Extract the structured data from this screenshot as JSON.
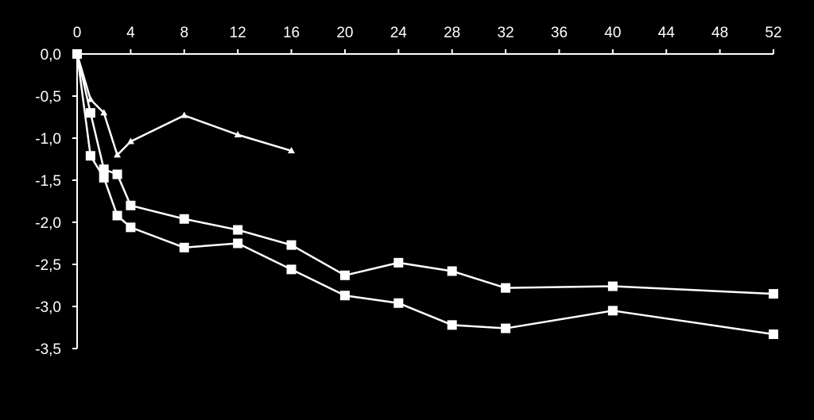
{
  "chart_data": {
    "type": "line",
    "title": "",
    "xlabel": "",
    "ylabel": "",
    "xlim": [
      0,
      52
    ],
    "ylim": [
      -3.5,
      0.0
    ],
    "x_ticks": [
      {
        "value": 0,
        "label": "0"
      },
      {
        "value": 4,
        "label": "4"
      },
      {
        "value": 8,
        "label": "8"
      },
      {
        "value": 12,
        "label": "12"
      },
      {
        "value": 16,
        "label": "16"
      },
      {
        "value": 20,
        "label": "20"
      },
      {
        "value": 24,
        "label": "24"
      },
      {
        "value": 28,
        "label": "28"
      },
      {
        "value": 32,
        "label": "32"
      },
      {
        "value": 36,
        "label": "36"
      },
      {
        "value": 40,
        "label": "40"
      },
      {
        "value": 44,
        "label": "44"
      },
      {
        "value": 48,
        "label": "48"
      },
      {
        "value": 52,
        "label": "52"
      }
    ],
    "y_ticks": [
      {
        "value": 0.0,
        "label": "0,0"
      },
      {
        "value": -0.5,
        "label": "-0,5"
      },
      {
        "value": -1.0,
        "label": "-1,0"
      },
      {
        "value": -1.5,
        "label": "-1,5"
      },
      {
        "value": -2.0,
        "label": "-2,0"
      },
      {
        "value": -2.5,
        "label": "-2,5"
      },
      {
        "value": -3.0,
        "label": "-3,0"
      },
      {
        "value": -3.5,
        "label": "-3,5"
      }
    ],
    "x_axis_position": "top",
    "grid": false,
    "legend": "none",
    "colors": {
      "background": "#000000",
      "foreground": "#ffffff"
    },
    "series": [
      {
        "marker": "square",
        "points": [
          [
            0,
            0.0
          ],
          [
            1,
            -0.7
          ],
          [
            2,
            -1.37
          ],
          [
            3,
            -1.43
          ],
          [
            4,
            -1.8
          ],
          [
            8,
            -1.96
          ],
          [
            12,
            -2.09
          ],
          [
            16,
            -2.27
          ],
          [
            20,
            -2.63
          ],
          [
            24,
            -2.48
          ],
          [
            28,
            -2.58
          ],
          [
            32,
            -2.78
          ],
          [
            40,
            -2.76
          ],
          [
            52,
            -2.85
          ]
        ]
      },
      {
        "marker": "square",
        "points": [
          [
            0,
            0.0
          ],
          [
            1,
            -1.21
          ],
          [
            2,
            -1.47
          ],
          [
            3,
            -1.92
          ],
          [
            4,
            -2.06
          ],
          [
            8,
            -2.3
          ],
          [
            12,
            -2.25
          ],
          [
            16,
            -2.56
          ],
          [
            20,
            -2.87
          ],
          [
            24,
            -2.96
          ],
          [
            28,
            -3.22
          ],
          [
            32,
            -3.26
          ],
          [
            40,
            -3.05
          ],
          [
            52,
            -3.33
          ]
        ]
      },
      {
        "marker": "triangle",
        "points": [
          [
            0,
            0.0
          ],
          [
            1,
            -0.54
          ],
          [
            2,
            -0.7
          ],
          [
            3,
            -1.2
          ],
          [
            4,
            -1.04
          ],
          [
            8,
            -0.73
          ],
          [
            12,
            -0.96
          ],
          [
            16,
            -1.15
          ]
        ]
      }
    ]
  }
}
